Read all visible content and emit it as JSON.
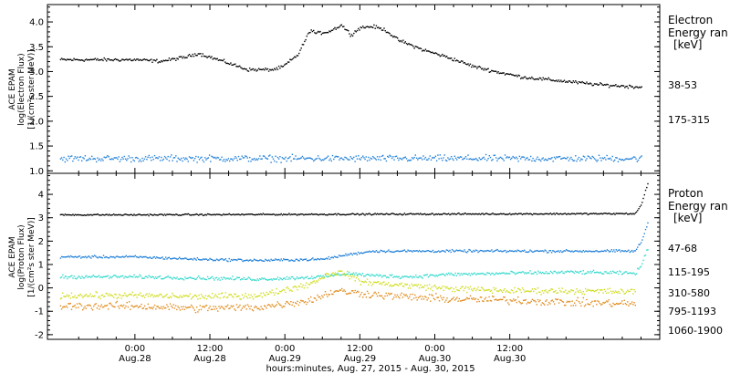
{
  "chart_data": [
    {
      "type": "scatter",
      "panel": "electron",
      "title": "",
      "ylabel_lines": [
        "ACE EPAM",
        "log(Electron Flux)",
        "[1/(cm²s ster MeV)]"
      ],
      "yticks": [
        "1.0",
        "1.5",
        "2.0",
        "2.5",
        "3.0",
        "3.5",
        "4.0"
      ],
      "yticks_values": [
        1.0,
        1.5,
        2.0,
        2.5,
        3.0,
        3.5,
        4.0
      ],
      "ylim": [
        0.95,
        4.35
      ],
      "legend_title_lines": [
        "Electron",
        "Energy ran",
        "[keV]"
      ],
      "grid": false,
      "series": [
        {
          "name": "38-53",
          "color": "#000000",
          "x_hours": [
            0,
            4,
            8,
            10,
            14,
            18,
            22,
            23.5,
            26,
            28,
            29,
            31,
            33,
            34.5,
            36,
            38,
            40,
            42,
            46,
            50,
            54,
            58,
            62,
            66,
            70,
            74,
            78,
            81
          ],
          "y": [
            3.25,
            3.22,
            3.3,
            3.38,
            3.22,
            3.05,
            3.05,
            3.1,
            3.35,
            3.85,
            3.78,
            3.82,
            3.95,
            3.75,
            3.9,
            3.92,
            3.85,
            3.65,
            3.45,
            3.3,
            3.12,
            3.0,
            2.9,
            2.85,
            2.8,
            2.75,
            2.72,
            2.7
          ]
        },
        {
          "name": "175-315",
          "color": "#1f7fd8",
          "x_hours": [
            0,
            81
          ],
          "y": [
            1.26,
            1.26
          ]
        }
      ]
    },
    {
      "type": "scatter",
      "panel": "proton",
      "title": "",
      "ylabel_lines": [
        "ACE EPAM",
        "log(Proton Flux)",
        "[1/(cm²s ster MeV)]"
      ],
      "yticks": [
        "-2",
        "-1",
        "0",
        "1",
        "2",
        "3",
        "4"
      ],
      "yticks_values": [
        -2,
        -1,
        0,
        1,
        2,
        3,
        4
      ],
      "ylim": [
        -2.2,
        4.9
      ],
      "legend_title_lines": [
        "Proton",
        "Energy ran",
        "[keV]"
      ],
      "grid": false,
      "series": [
        {
          "name": "47-68",
          "color": "#000000",
          "x_hours": [
            0,
            40,
            80,
            81,
            82
          ],
          "y": [
            3.15,
            3.18,
            3.2,
            3.6,
            4.5
          ]
        },
        {
          "name": "115-195",
          "color": "#1f7fd8",
          "x_hours": [
            0,
            10,
            20,
            30,
            34,
            38,
            44,
            50,
            60,
            70,
            80,
            81,
            82
          ],
          "y": [
            1.35,
            1.25,
            1.2,
            1.25,
            1.45,
            1.6,
            1.6,
            1.6,
            1.6,
            1.6,
            1.6,
            2.0,
            2.8
          ]
        },
        {
          "name": "310-580",
          "color": "#33d9cc",
          "x_hours": [
            0,
            10,
            20,
            30,
            34,
            38,
            44,
            50,
            60,
            70,
            80,
            81,
            82
          ],
          "y": [
            0.5,
            0.45,
            0.4,
            0.5,
            0.65,
            0.55,
            0.5,
            0.6,
            0.65,
            0.7,
            0.65,
            1.0,
            1.7
          ]
        },
        {
          "name": "795-1193",
          "color": "#cfdc1c",
          "x_hours": [
            0,
            10,
            20,
            28,
            30,
            32,
            34,
            36,
            40,
            50,
            60,
            70,
            80
          ],
          "y": [
            -0.3,
            -0.35,
            -0.3,
            0.2,
            0.5,
            0.7,
            0.6,
            0.3,
            0.2,
            0.0,
            -0.1,
            -0.1,
            -0.15
          ]
        },
        {
          "name": "1060-1900",
          "color": "#e08a1a",
          "x_hours": [
            0,
            10,
            20,
            28,
            30,
            32,
            36,
            40,
            50,
            60,
            70,
            80
          ],
          "y": [
            -0.75,
            -0.85,
            -0.8,
            -0.5,
            -0.3,
            -0.1,
            -0.2,
            -0.3,
            -0.45,
            -0.5,
            -0.6,
            -0.65
          ]
        }
      ]
    }
  ],
  "xaxis": {
    "label": "hours:minutes, Aug. 27, 2015 - Aug. 30, 2015",
    "range_hours": [
      -14,
      84
    ],
    "ticks": [
      {
        "hour": 0,
        "time": "0:00",
        "date": "Aug.28"
      },
      {
        "hour": 12,
        "time": "12:00",
        "date": "Aug.28"
      },
      {
        "hour": 24,
        "time": "0:00",
        "date": "Aug.29"
      },
      {
        "hour": 36,
        "time": "12:00",
        "date": "Aug.29"
      },
      {
        "hour": 48,
        "time": "0:00",
        "date": "Aug.30"
      },
      {
        "hour": 60,
        "time": "12:00",
        "date": "Aug.30"
      }
    ]
  }
}
